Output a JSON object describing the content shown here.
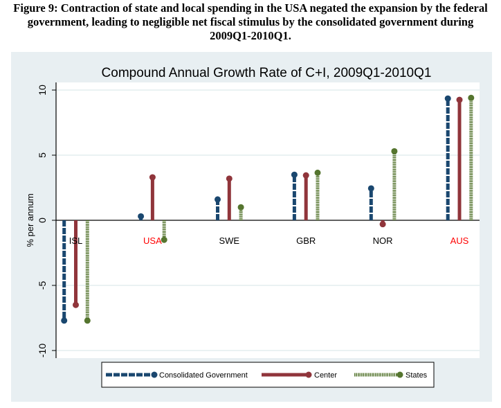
{
  "figure_caption": {
    "line1": "Figure 9: Contraction of state and local spending in the USA negated the expansion by the federal",
    "line2": "government, leading to negligible net fiscal stimulus by the consolidated government during",
    "line3": "2009Q1-2010Q1."
  },
  "chart_data": {
    "type": "bar",
    "subtype": "dropped-line (spike) chart",
    "title": "Compound Annual Growth Rate of C+I, 2009Q1-2010Q1",
    "xlabel": "",
    "ylabel": "% per annum",
    "ylim": [
      -10,
      10
    ],
    "yticks": [
      -10,
      -5,
      0,
      5,
      10
    ],
    "ytick_labels": [
      "-10",
      "-5",
      "0",
      "5",
      "10"
    ],
    "grid": true,
    "categories": [
      "ISL",
      "USA",
      "SWE",
      "GBR",
      "NOR",
      "AUS"
    ],
    "highlighted_categories": [
      "USA",
      "AUS"
    ],
    "series": [
      {
        "name": "Consolidated Government",
        "color": "#1a476f",
        "line_style": "dashed",
        "values": [
          -7.7,
          0.3,
          1.6,
          3.5,
          2.45,
          9.35
        ]
      },
      {
        "name": "Center",
        "color": "#90353b",
        "line_style": "solid",
        "values": [
          -6.5,
          3.3,
          3.2,
          3.45,
          -0.3,
          9.25
        ]
      },
      {
        "name": "States",
        "color": "#55752f",
        "line_style": "dotted",
        "values": [
          -7.7,
          -1.5,
          1.0,
          3.65,
          5.3,
          9.4
        ]
      }
    ],
    "legend": {
      "position": "bottom",
      "entries": [
        "Consolidated Government",
        "Center",
        "States"
      ]
    }
  },
  "colors": {
    "panel_background": "#e8eff2",
    "plot_background": "#ffffff",
    "highlight_label": "#ff0000",
    "normal_label": "#000000"
  }
}
